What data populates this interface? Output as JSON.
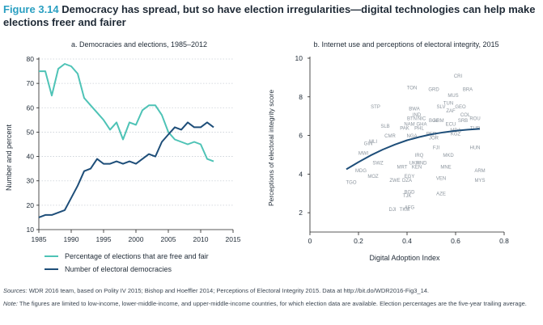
{
  "figure": {
    "number": "Figure 3.14",
    "title": "Democracy has spread, but so have election irregularities—digital technologies can help make elections freer and fairer"
  },
  "colors": {
    "teal": "#4ec3b6",
    "navy": "#1e4e79",
    "grid": "#c9cfd6",
    "axis": "#222222",
    "label": "#8c959e"
  },
  "chart_data": [
    {
      "type": "line",
      "title": "a. Democracies and elections, 1985–2012",
      "xlabel": "",
      "ylabel": "Number and percent",
      "xlim": [
        1985,
        2015
      ],
      "ylim": [
        10,
        80
      ],
      "xticks": [
        1985,
        1990,
        1995,
        2000,
        2005,
        2010,
        2015
      ],
      "yticks": [
        10,
        20,
        30,
        40,
        50,
        60,
        70,
        80
      ],
      "grid": "horizontal dotted",
      "legend_position": "bottom",
      "series": [
        {
          "name": "Percentage of elections that are free and fair",
          "color": "teal",
          "x": [
            1985,
            1986,
            1987,
            1988,
            1989,
            1990,
            1991,
            1992,
            1993,
            1994,
            1995,
            1996,
            1997,
            1998,
            1999,
            2000,
            2001,
            2002,
            2003,
            2004,
            2005,
            2006,
            2007,
            2008,
            2009,
            2010,
            2011,
            2012
          ],
          "values": [
            75,
            75,
            65,
            76,
            78,
            77,
            74,
            64,
            61,
            58,
            55,
            51,
            54,
            47,
            54,
            53,
            59,
            61,
            61,
            57,
            50,
            47,
            46,
            45,
            46,
            45,
            39,
            38
          ]
        },
        {
          "name": "Number of electoral democracies",
          "color": "navy",
          "x": [
            1985,
            1986,
            1987,
            1988,
            1989,
            1990,
            1991,
            1992,
            1993,
            1994,
            1995,
            1996,
            1997,
            1998,
            1999,
            2000,
            2001,
            2002,
            2003,
            2004,
            2005,
            2006,
            2007,
            2008,
            2009,
            2010,
            2011,
            2012
          ],
          "values": [
            15,
            16,
            16,
            17,
            18,
            23,
            28,
            34,
            35,
            39,
            37,
            37,
            38,
            37,
            38,
            37,
            39,
            41,
            40,
            46,
            49,
            52,
            51,
            54,
            52,
            52,
            54,
            52
          ]
        }
      ]
    },
    {
      "type": "scatter",
      "title": "b. Internet use and perceptions of electoral integrity, 2015",
      "xlabel": "Digital Adoption Index",
      "ylabel": "Perceptions of electoral integrity score",
      "xlim": [
        0,
        0.8
      ],
      "ylim": [
        1,
        10
      ],
      "xticks": [
        0,
        0.2,
        0.4,
        0.6,
        0.8
      ],
      "yticks": [
        2,
        4,
        6,
        8,
        10
      ],
      "points": [
        {
          "label": "CRI",
          "x": 0.61,
          "y": 9.1
        },
        {
          "label": "TON",
          "x": 0.42,
          "y": 8.5
        },
        {
          "label": "GRD",
          "x": 0.51,
          "y": 8.4
        },
        {
          "label": "BRA",
          "x": 0.65,
          "y": 8.4
        },
        {
          "label": "MUS",
          "x": 0.59,
          "y": 8.1
        },
        {
          "label": "TUN",
          "x": 0.57,
          "y": 7.7
        },
        {
          "label": "STP",
          "x": 0.27,
          "y": 7.5
        },
        {
          "label": "BWA",
          "x": 0.43,
          "y": 7.4
        },
        {
          "label": "SLV",
          "x": 0.54,
          "y": 7.5
        },
        {
          "label": "GEO",
          "x": 0.62,
          "y": 7.5
        },
        {
          "label": "ZAF",
          "x": 0.58,
          "y": 7.3
        },
        {
          "label": "IND",
          "x": 0.44,
          "y": 7.1
        },
        {
          "label": "COL",
          "x": 0.64,
          "y": 7.1
        },
        {
          "label": "BTN",
          "x": 0.42,
          "y": 6.9
        },
        {
          "label": "NIC",
          "x": 0.46,
          "y": 6.9
        },
        {
          "label": "BOL",
          "x": 0.51,
          "y": 6.8
        },
        {
          "label": "ARM",
          "x": 0.53,
          "y": 6.8
        },
        {
          "label": "SRB",
          "x": 0.63,
          "y": 6.8
        },
        {
          "label": "ROU",
          "x": 0.68,
          "y": 6.9
        },
        {
          "label": "NAM",
          "x": 0.41,
          "y": 6.6
        },
        {
          "label": "GHA",
          "x": 0.46,
          "y": 6.6
        },
        {
          "label": "ECU",
          "x": 0.58,
          "y": 6.6
        },
        {
          "label": "SLB",
          "x": 0.31,
          "y": 6.5
        },
        {
          "label": "PAK",
          "x": 0.39,
          "y": 6.4
        },
        {
          "label": "PHL",
          "x": 0.45,
          "y": 6.4
        },
        {
          "label": "MDA",
          "x": 0.6,
          "y": 6.3
        },
        {
          "label": "TUR",
          "x": 0.68,
          "y": 6.4
        },
        {
          "label": "CMR",
          "x": 0.33,
          "y": 6.0
        },
        {
          "label": "NGA",
          "x": 0.42,
          "y": 6.0
        },
        {
          "label": "PER",
          "x": 0.5,
          "y": 6.1
        },
        {
          "label": "JOR",
          "x": 0.51,
          "y": 5.9
        },
        {
          "label": "KGZ",
          "x": 0.6,
          "y": 6.1
        },
        {
          "label": "GIN",
          "x": 0.24,
          "y": 5.6
        },
        {
          "label": "MLI",
          "x": 0.26,
          "y": 5.7
        },
        {
          "label": "FJI",
          "x": 0.52,
          "y": 5.4
        },
        {
          "label": "HUN",
          "x": 0.68,
          "y": 5.4
        },
        {
          "label": "MWI",
          "x": 0.22,
          "y": 5.1
        },
        {
          "label": "IRQ",
          "x": 0.45,
          "y": 5.0
        },
        {
          "label": "MKD",
          "x": 0.57,
          "y": 5.0
        },
        {
          "label": "SWZ",
          "x": 0.28,
          "y": 4.6
        },
        {
          "label": "UKR",
          "x": 0.43,
          "y": 4.6
        },
        {
          "label": "HND",
          "x": 0.46,
          "y": 4.6
        },
        {
          "label": "MRT",
          "x": 0.38,
          "y": 4.4
        },
        {
          "label": "KEN",
          "x": 0.44,
          "y": 4.4
        },
        {
          "label": "MNE",
          "x": 0.56,
          "y": 4.4
        },
        {
          "label": "MDG",
          "x": 0.21,
          "y": 4.2
        },
        {
          "label": "ARM",
          "x": 0.7,
          "y": 4.2
        },
        {
          "label": "MOZ",
          "x": 0.26,
          "y": 3.9
        },
        {
          "label": "ZWE",
          "x": 0.35,
          "y": 3.7
        },
        {
          "label": "DZA",
          "x": 0.4,
          "y": 3.7
        },
        {
          "label": "VEN",
          "x": 0.54,
          "y": 3.8
        },
        {
          "label": "MYS",
          "x": 0.7,
          "y": 3.7
        },
        {
          "label": "TGO",
          "x": 0.17,
          "y": 3.6
        },
        {
          "label": "EGY",
          "x": 0.41,
          "y": 3.9
        },
        {
          "label": "BGD",
          "x": 0.41,
          "y": 3.1
        },
        {
          "label": "TJK",
          "x": 0.4,
          "y": 2.9
        },
        {
          "label": "AZE",
          "x": 0.54,
          "y": 3.0
        },
        {
          "label": "DJI",
          "x": 0.34,
          "y": 2.2
        },
        {
          "label": "TKM",
          "x": 0.39,
          "y": 2.2
        },
        {
          "label": "AFG",
          "x": 0.41,
          "y": 2.3
        }
      ],
      "fit_line": {
        "x": [
          0.15,
          0.2,
          0.25,
          0.3,
          0.35,
          0.4,
          0.45,
          0.5,
          0.55,
          0.6,
          0.65,
          0.7
        ],
        "values": [
          4.25,
          4.62,
          4.97,
          5.27,
          5.53,
          5.75,
          5.92,
          6.06,
          6.16,
          6.24,
          6.3,
          6.34
        ]
      }
    }
  ],
  "sources": {
    "label": "Sources:",
    "text": "WDR 2016 team, based on Polity IV 2015; Bishop and Hoeffler 2014; Perceptions of Electoral Integrity 2015. Data at http://bit.do/WDR2016-Fig3_14."
  },
  "note": {
    "label": "Note:",
    "text": "The figures are limited to low-income, lower-middle-income, and upper-middle-income countries, for which election data are available. Election percentages are the five-year trailing average."
  }
}
